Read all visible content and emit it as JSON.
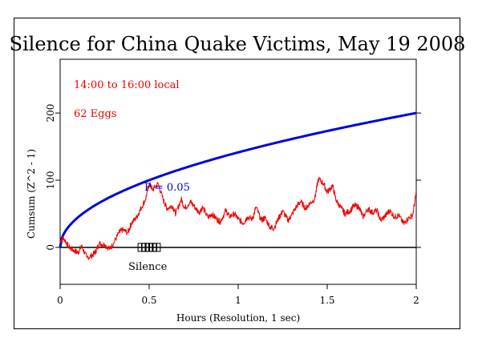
{
  "chart_data": {
    "type": "line",
    "title": "Silence for China Quake Victims, May 19 2008",
    "xlabel": "Hours (Resolution, 1 sec)",
    "ylabel": "Cumsum (Z^2 - 1)",
    "xlim": [
      0,
      2
    ],
    "ylim": [
      -55,
      280
    ],
    "x_ticks": [
      0,
      0.5,
      1,
      1.5,
      2
    ],
    "x_tick_labels": [
      "0",
      "0.5",
      "1",
      "1.5",
      "2"
    ],
    "y_ticks": [
      0,
      100,
      200
    ],
    "y_tick_labels": [
      "0",
      "100",
      "200"
    ],
    "annotations": {
      "time_range": "14:00 to 16:00 local",
      "egg_count": "62 Eggs",
      "p_label": "P = 0.05",
      "event_label": "Silence"
    },
    "event_markers_x": [
      0.46,
      0.48,
      0.5,
      0.52,
      0.54
    ],
    "series": [
      {
        "color": "#0000dd",
        "function": "sqrt",
        "x": [
          0,
          0.02,
          0.05,
          0.1,
          0.2,
          0.3,
          0.4,
          0.5,
          0.6,
          0.7,
          0.8,
          0.9,
          1.0,
          1.1,
          1.2,
          1.3,
          1.4,
          1.5,
          1.6,
          1.7,
          1.8,
          1.9,
          2.0
        ],
        "values": [
          0,
          20,
          32,
          45,
          63,
          77,
          89,
          100,
          110,
          118,
          126,
          134,
          141,
          148,
          155,
          161,
          167,
          173,
          179,
          184,
          189,
          195,
          200
        ]
      },
      {
        "color": "#ee0000",
        "x": [
          0,
          0.02,
          0.05,
          0.08,
          0.1,
          0.12,
          0.15,
          0.18,
          0.2,
          0.22,
          0.25,
          0.28,
          0.3,
          0.33,
          0.35,
          0.38,
          0.4,
          0.43,
          0.45,
          0.48,
          0.5,
          0.52,
          0.55,
          0.58,
          0.6,
          0.63,
          0.65,
          0.68,
          0.7,
          0.73,
          0.75,
          0.78,
          0.8,
          0.83,
          0.85,
          0.88,
          0.9,
          0.93,
          0.95,
          0.98,
          1.0,
          1.03,
          1.05,
          1.08,
          1.1,
          1.13,
          1.15,
          1.18,
          1.2,
          1.23,
          1.25,
          1.28,
          1.3,
          1.33,
          1.35,
          1.38,
          1.4,
          1.43,
          1.45,
          1.48,
          1.5,
          1.53,
          1.55,
          1.58,
          1.6,
          1.63,
          1.65,
          1.68,
          1.7,
          1.73,
          1.75,
          1.78,
          1.8,
          1.83,
          1.85,
          1.88,
          1.9,
          1.93,
          1.95,
          1.98,
          2.0
        ],
        "values": [
          10,
          14,
          0,
          -5,
          -8,
          2,
          -15,
          -12,
          -6,
          6,
          4,
          -2,
          6,
          22,
          26,
          22,
          36,
          45,
          56,
          72,
          95,
          86,
          95,
          70,
          58,
          62,
          50,
          72,
          58,
          68,
          62,
          52,
          60,
          44,
          50,
          42,
          38,
          55,
          46,
          50,
          42,
          36,
          45,
          42,
          60,
          40,
          44,
          30,
          28,
          45,
          54,
          40,
          48,
          62,
          68,
          58,
          65,
          72,
          102,
          95,
          82,
          92,
          70,
          58,
          50,
          55,
          62,
          60,
          45,
          58,
          52,
          55,
          40,
          48,
          55,
          45,
          48,
          35,
          42,
          48,
          82
        ]
      }
    ]
  }
}
